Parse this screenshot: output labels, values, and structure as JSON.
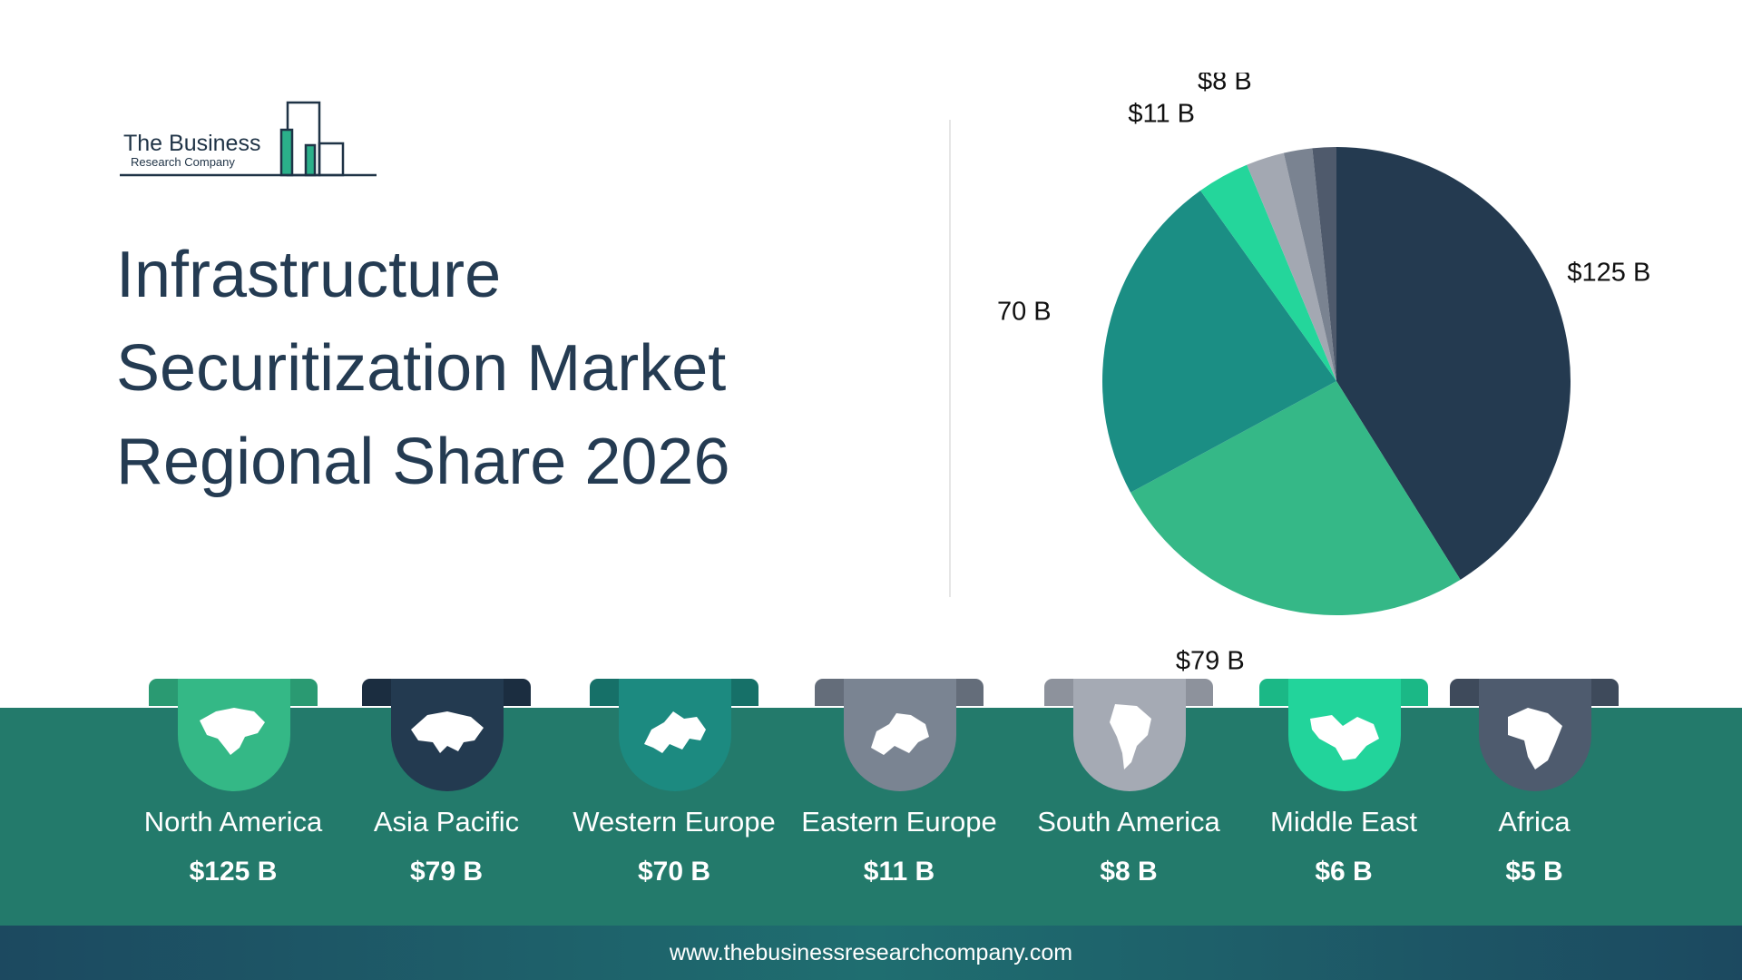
{
  "logo": {
    "line1": "The Business",
    "line2": "Research Company"
  },
  "title": "Infrastructure Securitization Market Regional Share 2026",
  "footer": {
    "url": "www.thebusinessresearchcompany.com"
  },
  "colors": {
    "band": "#237a6b",
    "title": "#243b52"
  },
  "regions": [
    {
      "name": "North America",
      "value": "$125 B",
      "color": "#34b886",
      "tab_color": "#2a9a72",
      "icon": "north-america-map-icon"
    },
    {
      "name": "Asia Pacific",
      "value": "$79 B",
      "color": "#233a50",
      "tab_color": "#1b2d40",
      "icon": "asia-pacific-map-icon"
    },
    {
      "name": "Western Europe",
      "value": "$70 B",
      "color": "#1c8a80",
      "tab_color": "#167068",
      "icon": "western-europe-map-icon"
    },
    {
      "name": "Eastern Europe",
      "value": "$11 B",
      "color": "#7a8492",
      "tab_color": "#646d7a",
      "icon": "eastern-europe-map-icon"
    },
    {
      "name": "South America",
      "value": "$8 B",
      "color": "#a5aab4",
      "tab_color": "#8d929c",
      "icon": "south-america-map-icon"
    },
    {
      "name": "Middle East",
      "value": "$6 B",
      "color": "#22d49b",
      "tab_color": "#1bb886",
      "icon": "middle-east-map-icon"
    },
    {
      "name": "Africa",
      "value": "$5 B",
      "color": "#4e5b6e",
      "tab_color": "#3e4a5b",
      "icon": "africa-map-icon"
    }
  ],
  "chart_data": {
    "type": "pie",
    "title": "Infrastructure Securitization Market Regional Share 2026",
    "unit": "$ B",
    "categories": [
      "North America",
      "Asia Pacific",
      "Western Europe",
      "Eastern Europe",
      "South America",
      "Middle East",
      "Africa"
    ],
    "values": [
      125,
      79,
      70,
      11,
      8,
      6,
      5
    ],
    "labels": [
      "$125 B",
      "$79 B",
      "$70 B",
      "$11 B",
      "$8 B",
      "$6 B",
      "$5 B"
    ],
    "colors": [
      "#243a50",
      "#35b887",
      "#1b8e84",
      "#24d69b",
      "#a3a8b2",
      "#7a8391",
      "#4f5a6c"
    ],
    "start_angle": "12 o'clock",
    "direction": "clockwise"
  }
}
